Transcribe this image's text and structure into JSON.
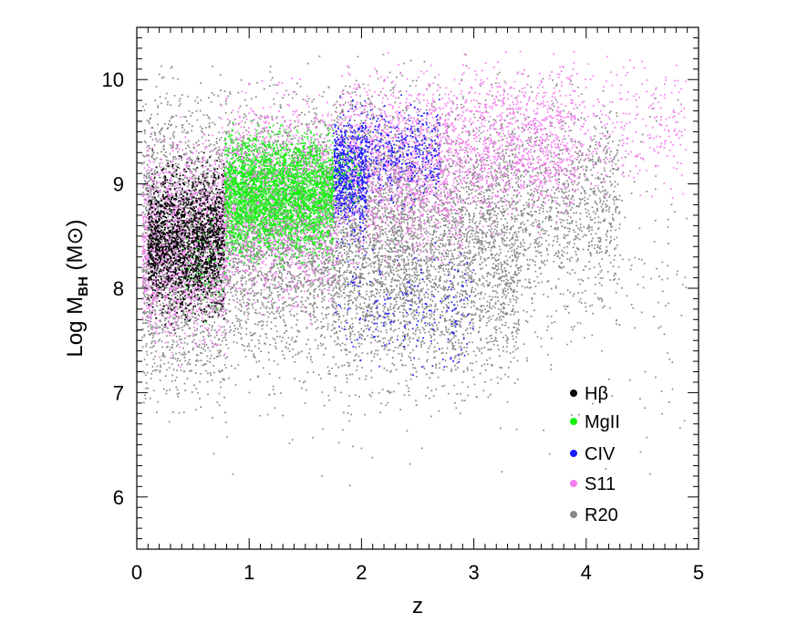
{
  "chart_data": {
    "type": "scatter",
    "title": "",
    "xlabel": "z",
    "ylabel": {
      "prefix": "Log M",
      "subscript": "BH",
      "unit_open": " (M",
      "unit_symbol": "⊙",
      "unit_close": ")"
    },
    "xlim": [
      0,
      5
    ],
    "ylim": [
      5.5,
      10.5
    ],
    "x_ticks": [
      0,
      1,
      2,
      3,
      4,
      5
    ],
    "y_ticks": [
      6,
      7,
      8,
      9,
      10
    ],
    "grid": false,
    "legend_position": "lower-right",
    "series": [
      {
        "name": "R20",
        "label": "R20",
        "color": "#878787",
        "regions": [
          {
            "x": [
              0.05,
              0.8
            ],
            "y": [
              6.5,
              10.3
            ],
            "n": 2400
          },
          {
            "x": [
              0.8,
              1.75
            ],
            "y": [
              6.8,
              10.3
            ],
            "n": 2300
          },
          {
            "x": [
              1.75,
              2.5
            ],
            "y": [
              6.6,
              10.4
            ],
            "n": 2200
          },
          {
            "x": [
              2.5,
              3.4
            ],
            "y": [
              6.6,
              10.3
            ],
            "n": 2000
          },
          {
            "x": [
              3.4,
              4.3
            ],
            "y": [
              7.4,
              10.2
            ],
            "n": 900
          },
          {
            "x": [
              0.1,
              4.9
            ],
            "y": [
              5.7,
              10.4
            ],
            "n": 700
          }
        ]
      },
      {
        "name": "S11",
        "label": "S11",
        "color": "#f47ef0",
        "regions": [
          {
            "x": [
              0.05,
              0.8
            ],
            "y": [
              7.1,
              9.7
            ],
            "n": 1500
          },
          {
            "x": [
              0.75,
              1.8
            ],
            "y": [
              7.5,
              10.2
            ],
            "n": 1600
          },
          {
            "x": [
              1.8,
              2.9
            ],
            "y": [
              8.0,
              10.4
            ],
            "n": 1500
          },
          {
            "x": [
              2.9,
              3.9
            ],
            "y": [
              8.3,
              10.4
            ],
            "n": 1000
          },
          {
            "x": [
              3.9,
              4.9
            ],
            "y": [
              8.6,
              10.4
            ],
            "n": 280
          }
        ]
      },
      {
        "name": "CIV",
        "label": "CIV",
        "color": "#1a1aff",
        "regions": [
          {
            "x": [
              1.75,
              2.05
            ],
            "y": [
              8.3,
              9.9
            ],
            "n": 650
          },
          {
            "x": [
              2.05,
              2.7
            ],
            "y": [
              8.7,
              9.9
            ],
            "n": 350
          },
          {
            "x": [
              1.75,
              3.0
            ],
            "y": [
              7.0,
              8.7
            ],
            "n": 180
          }
        ]
      },
      {
        "name": "MgII",
        "label": "MgII",
        "color": "#18f012",
        "regions": [
          {
            "x": [
              0.78,
              1.75
            ],
            "y": [
              8.1,
              9.7
            ],
            "n": 3200
          },
          {
            "x": [
              0.4,
              0.8
            ],
            "y": [
              7.5,
              9.0
            ],
            "n": 120
          },
          {
            "x": [
              1.75,
              2.0
            ],
            "y": [
              8.7,
              9.6
            ],
            "n": 60
          }
        ]
      },
      {
        "name": "Hβ",
        "label": "Hβ",
        "color": "#000000",
        "regions": [
          {
            "x": [
              0.1,
              0.78
            ],
            "y": [
              7.5,
              9.4
            ],
            "n": 1700
          }
        ]
      }
    ],
    "legend": [
      {
        "label": "Hβ",
        "symbol_color": "#000000"
      },
      {
        "label": "MgII",
        "symbol_color": "#18f012"
      },
      {
        "label": "CIV",
        "symbol_color": "#1a1aff"
      },
      {
        "label": "S11",
        "symbol_color": "#f47ef0"
      },
      {
        "label": "R20",
        "symbol_color": "#878787"
      }
    ]
  }
}
